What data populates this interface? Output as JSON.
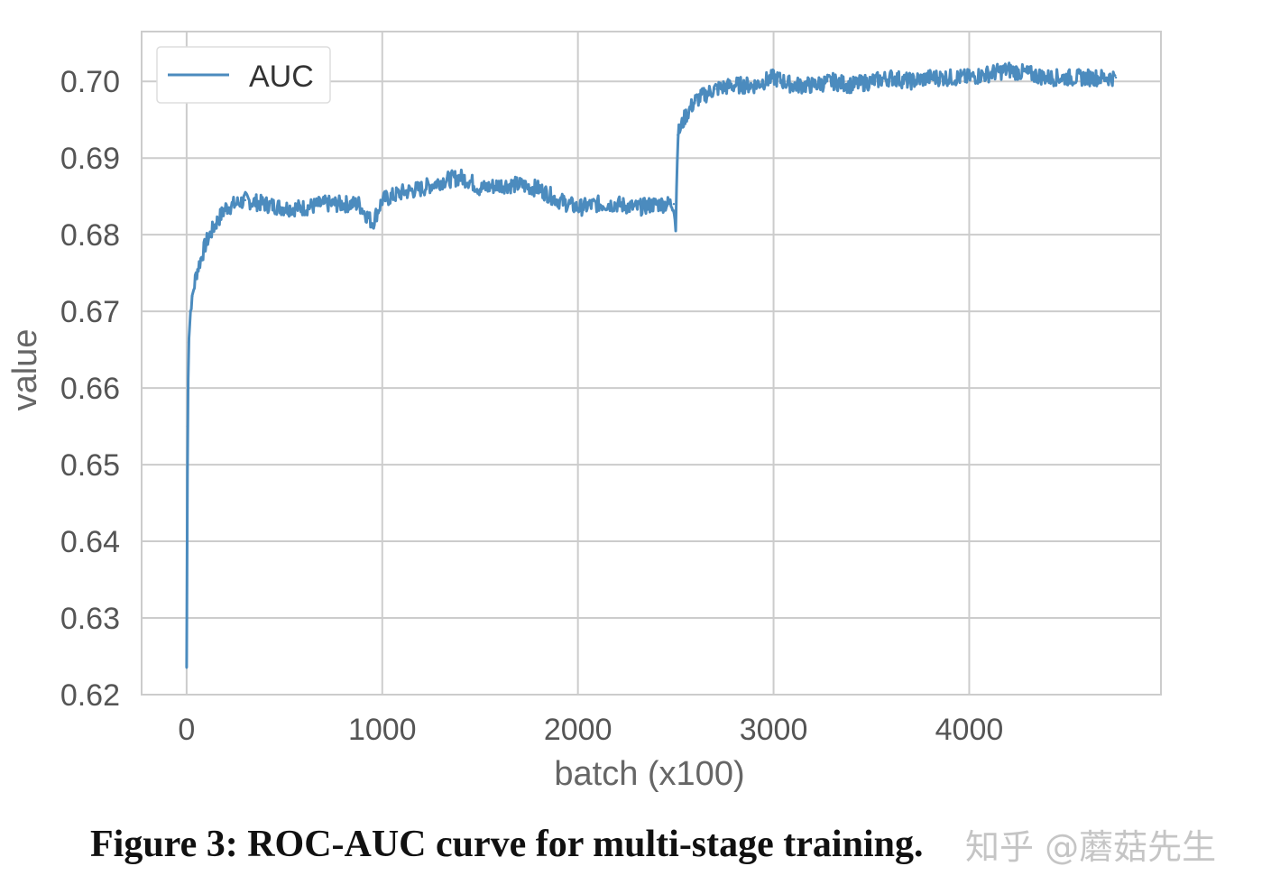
{
  "chart_data": {
    "type": "line",
    "xlabel": "batch (x100)",
    "ylabel": "value",
    "xlim": [
      -230,
      4980
    ],
    "ylim": [
      0.62,
      0.7065
    ],
    "xticks": [
      0,
      1000,
      2000,
      3000,
      4000
    ],
    "yticks": [
      0.62,
      0.63,
      0.64,
      0.65,
      0.66,
      0.67,
      0.68,
      0.69,
      0.7
    ],
    "xtick_labels": [
      "0",
      "1000",
      "2000",
      "3000",
      "4000"
    ],
    "ytick_labels": [
      "0.62",
      "0.63",
      "0.64",
      "0.65",
      "0.66",
      "0.67",
      "0.68",
      "0.69",
      "0.70"
    ],
    "grid": true,
    "legend_position": "top-left",
    "series": [
      {
        "name": "AUC",
        "color": "#4b8bbe",
        "x": [
          0,
          5,
          10,
          20,
          30,
          50,
          75,
          100,
          150,
          200,
          250,
          300,
          400,
          500,
          600,
          700,
          800,
          880,
          950,
          1000,
          1100,
          1200,
          1300,
          1400,
          1450,
          1500,
          1600,
          1700,
          1800,
          1900,
          2000,
          2100,
          2200,
          2300,
          2400,
          2490,
          2500,
          2510,
          2550,
          2600,
          2700,
          2800,
          2900,
          3000,
          3100,
          3200,
          3300,
          3400,
          3500,
          3600,
          3700,
          3800,
          3900,
          4000,
          4100,
          4200,
          4300,
          4400,
          4500,
          4600,
          4700,
          4750
        ],
        "values": [
          0.6235,
          0.655,
          0.666,
          0.67,
          0.672,
          0.675,
          0.677,
          0.679,
          0.6815,
          0.6835,
          0.684,
          0.6845,
          0.684,
          0.6835,
          0.6835,
          0.684,
          0.684,
          0.684,
          0.6815,
          0.6845,
          0.6855,
          0.686,
          0.687,
          0.6875,
          0.687,
          0.686,
          0.6865,
          0.6865,
          0.686,
          0.6845,
          0.6835,
          0.684,
          0.684,
          0.6835,
          0.684,
          0.684,
          0.681,
          0.693,
          0.6955,
          0.6975,
          0.699,
          0.6995,
          0.6995,
          0.7005,
          0.6995,
          0.6995,
          0.7,
          0.6995,
          0.7,
          0.7005,
          0.7,
          0.7005,
          0.7005,
          0.7005,
          0.701,
          0.7015,
          0.701,
          0.7005,
          0.7005,
          0.7005,
          0.7005,
          0.7005
        ]
      }
    ]
  },
  "figure": {
    "caption": "Figure 3: ROC-AUC curve for multi-stage training.",
    "watermark": "知乎 @蘑菇先生"
  }
}
